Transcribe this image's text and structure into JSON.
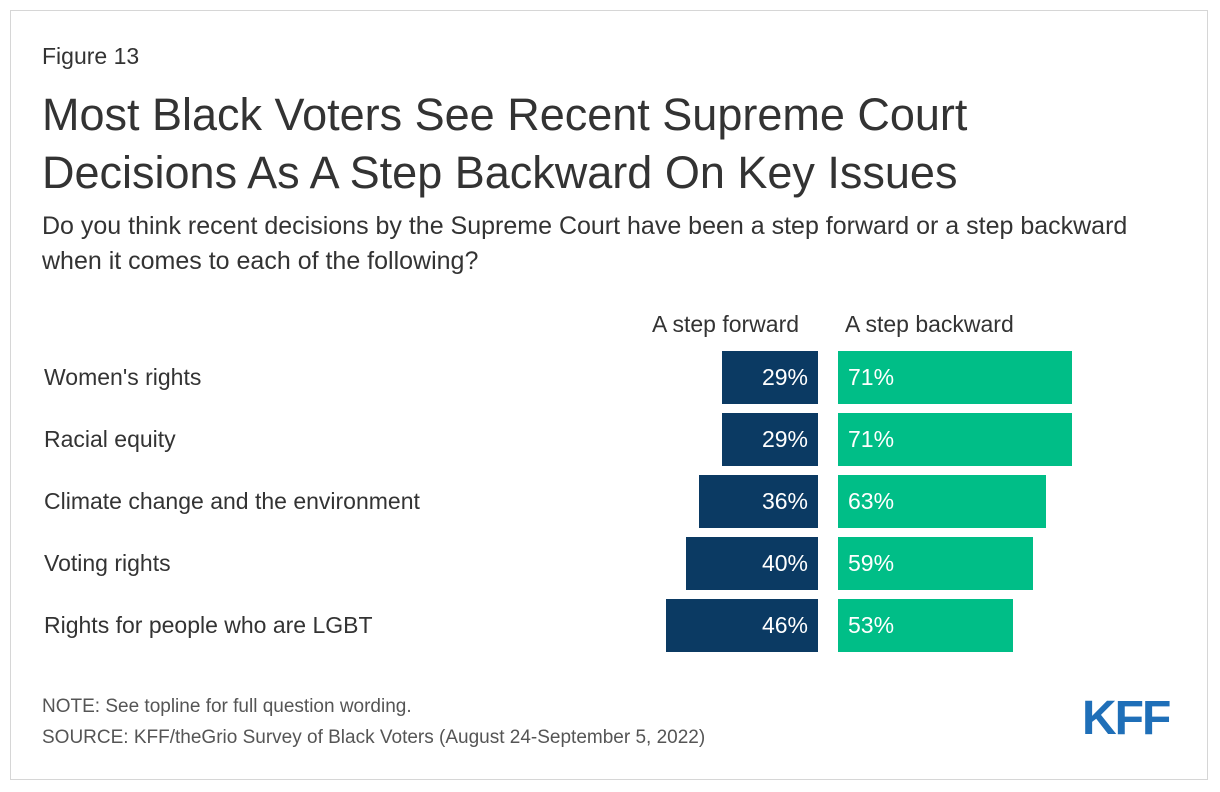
{
  "figure_label": "Figure 13",
  "title": "Most Black Voters See Recent Supreme Court Decisions As A Step Backward On Key Issues",
  "subtitle": "Do you think recent decisions by the Supreme Court have been a step forward or a step backward when it comes to each of the following?",
  "note": "NOTE: See topline for full question wording.",
  "source": "SOURCE: KFF/theGrio Survey of Black Voters (August 24-September 5, 2022)",
  "logo_text": "KFF",
  "colors": {
    "forward": "#0b3a63",
    "backward": "#00be87",
    "logo": "#1f6fb8"
  },
  "chart_data": {
    "type": "bar",
    "orientation": "horizontal-diverging",
    "title": "Most Black Voters See Recent Supreme Court Decisions As A Step Backward On Key Issues",
    "categories": [
      "Women's rights",
      "Racial equity",
      "Climate change and the environment",
      "Voting rights",
      "Rights for people who are LGBT"
    ],
    "series": [
      {
        "name": "A step forward",
        "values": [
          29,
          29,
          36,
          40,
          46
        ]
      },
      {
        "name": "A step backward",
        "values": [
          71,
          71,
          63,
          59,
          53
        ]
      }
    ],
    "value_suffix": "%",
    "xlim": [
      0,
      100
    ],
    "grid": false,
    "legend_position": "top"
  }
}
